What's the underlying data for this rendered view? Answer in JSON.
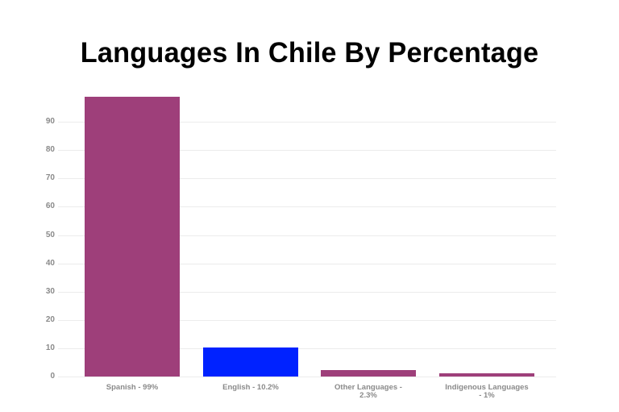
{
  "chart_data": {
    "type": "bar",
    "title": "Languages In Chile By Percentage",
    "categories": [
      "Spanish - 99%",
      "English - 10.2%",
      "Other Languages - 2.3%",
      "Indigenous Languages - 1%"
    ],
    "category_lines": [
      [
        "Spanish - 99%"
      ],
      [
        "English - 10.2%"
      ],
      [
        "Other Languages -",
        "2.3%"
      ],
      [
        "Indigenous Languages",
        "- 1%"
      ]
    ],
    "values": [
      99,
      10.2,
      2.3,
      1
    ],
    "colors": [
      "#9E3F7A",
      "#0022FF",
      "#9E3F7A",
      "#9E3F7A"
    ],
    "xlabel": "",
    "ylabel": "",
    "ylim": [
      0,
      100
    ],
    "yticks": [
      0,
      10,
      20,
      30,
      40,
      50,
      60,
      70,
      80,
      90
    ],
    "grid": true,
    "legend": "none"
  }
}
